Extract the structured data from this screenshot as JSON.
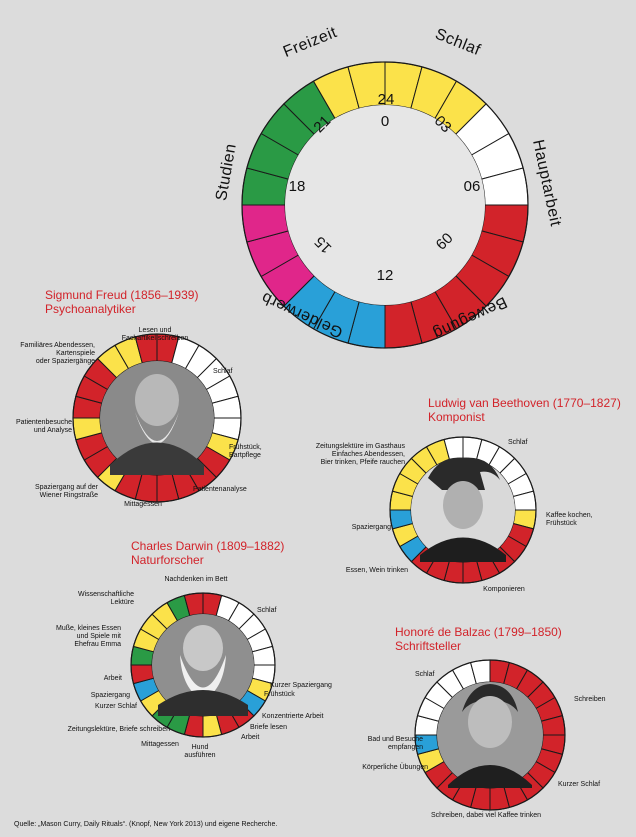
{
  "palette": {
    "yellow": "#fbe24a",
    "white": "#ffffff",
    "red": "#d2232a",
    "blue": "#29a0d8",
    "pink": "#e0268a",
    "green": "#2a9a45",
    "background": "#dcdcdc",
    "title_red": "#d2232a"
  },
  "legend_clock": {
    "segments": [
      "yellow",
      "yellow",
      "yellow",
      "white",
      "white",
      "white",
      "red",
      "red",
      "red",
      "red",
      "red",
      "red",
      "blue",
      "blue",
      "blue",
      "pink",
      "pink",
      "pink",
      "green",
      "green",
      "green",
      "green",
      "yellow",
      "yellow"
    ],
    "hour_labels": [
      "24",
      "0",
      "03",
      "06",
      "09",
      "12",
      "15",
      "18",
      "21"
    ],
    "categories": {
      "freizeit": "Freizeit",
      "schlaf": "Schlaf",
      "hauptarbeit": "Hauptarbeit",
      "bewegung": "Bewegung",
      "gelderwerb": "Gelderwerb",
      "studien": "Studien"
    }
  },
  "freud": {
    "name": "Sigmund Freud (1856–1939)",
    "profession": "Psychoanalytiker",
    "segments": [
      "red",
      "white",
      "white",
      "white",
      "white",
      "white",
      "white",
      "yellow",
      "red",
      "red",
      "red",
      "red",
      "red",
      "red",
      "yellow",
      "red",
      "red",
      "yellow",
      "red",
      "red",
      "red",
      "yellow",
      "yellow",
      "red"
    ],
    "labels": {
      "lesen": [
        "Lesen und",
        "Fachartikel schreiben"
      ],
      "abend": [
        "Familiäres Abendessen,",
        "Kartenspiele",
        "oder Spaziergänge"
      ],
      "schlaf": [
        "Schlaf"
      ],
      "patienten": [
        "Patientenbesuche",
        "und Analyse"
      ],
      "fruehstueck": [
        "Frühstück,",
        "Bartpflege"
      ],
      "spaziergang": [
        "Spaziergang auf der",
        "Wiener Ringstraße"
      ],
      "analyse": [
        "Patientenanalyse"
      ],
      "mittag": [
        "Mittagessen"
      ]
    }
  },
  "beethoven": {
    "name": "Ludwig van Beethoven (1770–1827)",
    "profession": "Komponist",
    "segments": [
      "white",
      "white",
      "white",
      "white",
      "white",
      "white",
      "yellow",
      "red",
      "red",
      "red",
      "red",
      "red",
      "red",
      "red",
      "red",
      "blue",
      "yellow",
      "blue",
      "yellow",
      "yellow",
      "yellow",
      "yellow",
      "yellow",
      "white"
    ],
    "labels": {
      "zeitung": [
        "Zeitungslektüre im Gasthaus",
        "Einfaches Abendessen,",
        "Bier trinken, Pfeife rauchen"
      ],
      "schlaf": [
        "Schlaf"
      ],
      "kaffee": [
        "Kaffee kochen,",
        "Frühstück"
      ],
      "spaziergang": [
        "Spaziergang"
      ],
      "essen": [
        "Essen, Wein trinken"
      ],
      "komponieren": [
        "Komponieren"
      ]
    }
  },
  "darwin": {
    "name": "Charles Darwin (1809–1882)",
    "profession": "Naturforscher",
    "segments": [
      "red",
      "white",
      "white",
      "white",
      "white",
      "white",
      "white",
      "yellow",
      "blue",
      "red",
      "red",
      "yellow",
      "red",
      "green",
      "green",
      "yellow",
      "blue",
      "red",
      "green",
      "yellow",
      "yellow",
      "yellow",
      "green",
      "red"
    ],
    "labels": {
      "nachdenken": [
        "Nachdenken im Bett"
      ],
      "lektuere": [
        "Wissenschaftliche",
        "Lektüre"
      ],
      "schlaf": [
        "Schlaf"
      ],
      "musse": [
        "Muße, kleines Essen",
        "und Spiele mit",
        "Ehefrau Emma"
      ],
      "arbeit1": [
        "Arbeit"
      ],
      "spaziergang": [
        "Spaziergang"
      ],
      "kurzer_schlaf": [
        "Kurzer Schlaf"
      ],
      "kurzer_spaziergang": [
        "Kurzer Spaziergang"
      ],
      "fruehstueck": [
        "Frühstück"
      ],
      "konzentriert": [
        "Konzentrierte Arbeit"
      ],
      "briefe_lesen": [
        "Briefe lesen"
      ],
      "arbeit2": [
        "Arbeit"
      ],
      "zeitung": [
        "Zeitungslektüre, Briefe schreiben"
      ],
      "mittag": [
        "Mittagessen"
      ],
      "hund": [
        "Hund",
        "ausführen"
      ]
    }
  },
  "balzac": {
    "name": "Honoré de Balzac (1799–1850)",
    "profession": "Schriftsteller",
    "segments": [
      "red",
      "red",
      "red",
      "red",
      "red",
      "red",
      "red",
      "red",
      "red",
      "red",
      "red",
      "red",
      "red",
      "red",
      "red",
      "red",
      "yellow",
      "blue",
      "white",
      "white",
      "white",
      "white",
      "white",
      "white"
    ],
    "labels": {
      "schlaf": [
        "Schlaf"
      ],
      "schreiben": [
        "Schreiben"
      ],
      "bad": [
        "Bad und Besuche",
        "empfangen"
      ],
      "koerper": [
        "Körperliche Übungen"
      ],
      "kurzer_schlaf": [
        "Kurzer Schlaf"
      ],
      "schreiben_kaffee": [
        "Schreiben, dabei viel Kaffee trinken"
      ]
    }
  },
  "source": "Quelle: „Mason Curry, Daily Rituals“. (Knopf, New York 2013) und eigene Recherche."
}
